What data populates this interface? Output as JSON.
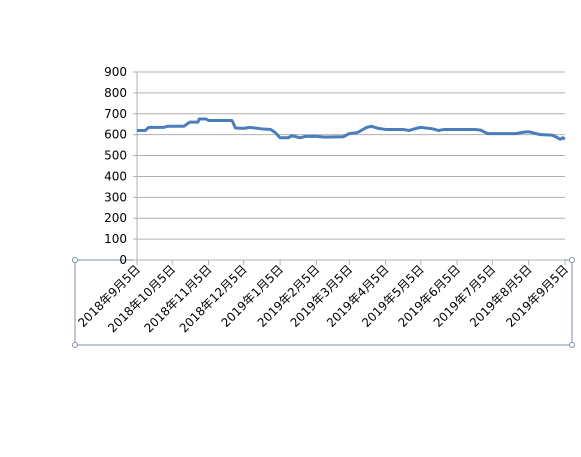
{
  "chart_data": {
    "type": "line",
    "x": [
      "2018年9月5日",
      "2018年9月12日",
      "2018年9月15日",
      "2018年9月28日",
      "2018年10月1日",
      "2018年10月15日",
      "2018年10月20日",
      "2018年10月27日",
      "2018年10月28日",
      "2018年11月3日",
      "2018年11月5日",
      "2018年11月25日",
      "2018年11月28日",
      "2018年12月5日",
      "2018年12月10日",
      "2018年12月20日",
      "2018年12月28日",
      "2019年1月1日",
      "2019年1月5日",
      "2019年1月12日",
      "2019年1月15日",
      "2019年1月22日",
      "2019年1月27日",
      "2019年2月5日",
      "2019年2月12日",
      "2019年2月28日",
      "2019年3月5日",
      "2019年3月12日",
      "2019年3月20日",
      "2019年3月24日",
      "2019年3月30日",
      "2019年4月5日",
      "2019年4月20日",
      "2019年4月25日",
      "2019年5月1日",
      "2019年5月5日",
      "2019年5月15日",
      "2019年5月20日",
      "2019年5月25日",
      "2019年6月5日",
      "2019年6月20日",
      "2019年6月25日",
      "2019年7月1日",
      "2019年7月25日",
      "2019年8月1日",
      "2019年8月5日",
      "2019年8月15日",
      "2019年8月25日",
      "2019年8月28日",
      "2019年9月1日",
      "2019年9月3日",
      "2019年9月5日"
    ],
    "series": [
      {
        "color": "#4a7ebb",
        "values": [
          620,
          620,
          635,
          635,
          640,
          640,
          660,
          660,
          675,
          675,
          668,
          668,
          632,
          630,
          635,
          628,
          625,
          610,
          585,
          585,
          595,
          585,
          592,
          592,
          588,
          590,
          605,
          610,
          635,
          640,
          630,
          625,
          625,
          620,
          630,
          635,
          628,
          620,
          625,
          625,
          625,
          622,
          605,
          605,
          612,
          614,
          600,
          598,
          590,
          578,
          585,
          580
        ]
      }
    ],
    "xlim": [
      "2018年9月5日",
      "2019年9月5日"
    ],
    "xticks": [
      "2018年9月5日",
      "2018年10月5日",
      "2018年11月5日",
      "2018年12月5日",
      "2019年1月5日",
      "2019年2月5日",
      "2019年3月5日",
      "2019年4月5日",
      "2019年5月5日",
      "2019年6月5日",
      "2019年7月5日",
      "2019年8月5日",
      "2019年9月5日"
    ],
    "ylim": [
      0,
      900
    ],
    "yticks": [
      0,
      100,
      200,
      300,
      400,
      500,
      600,
      700,
      800,
      900
    ],
    "grid": true
  }
}
